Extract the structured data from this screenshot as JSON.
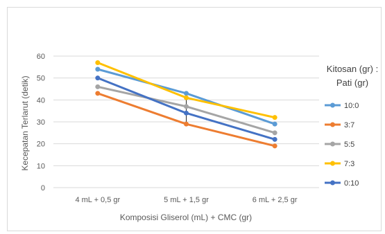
{
  "chart_data": {
    "type": "line",
    "title": "",
    "xlabel": "Komposisi Gliserol (mL) + CMC (gr)",
    "ylabel": "Kecepatan Terlarut (detik)",
    "ylim": [
      0,
      60
    ],
    "yticks": [
      "0",
      "10",
      "20",
      "30",
      "40",
      "50",
      "60"
    ],
    "grid": true,
    "legend_position": "right",
    "legend_title_lines": [
      "Kitosan (gr) :",
      "Pati (gr)"
    ],
    "categories": [
      "4 mL + 0,5 gr",
      "5 mL + 1,5 gr",
      "6 mL + 2,5 gr"
    ],
    "series": [
      {
        "name": "10:0",
        "color": "#5b9bd5",
        "values": [
          54,
          43,
          29
        ]
      },
      {
        "name": "3:7",
        "color": "#ed7d31",
        "values": [
          43,
          29,
          19
        ]
      },
      {
        "name": "5:5",
        "color": "#a5a5a5",
        "values": [
          46,
          37,
          25
        ]
      },
      {
        "name": "7:3",
        "color": "#ffc000",
        "values": [
          57,
          41,
          32
        ]
      },
      {
        "name": "0:10",
        "color": "#4472c4",
        "values": [
          50,
          34,
          22
        ]
      }
    ],
    "error_bar_category": "5 mL + 1,5 gr",
    "error_bar_range": [
      29,
      43
    ]
  }
}
